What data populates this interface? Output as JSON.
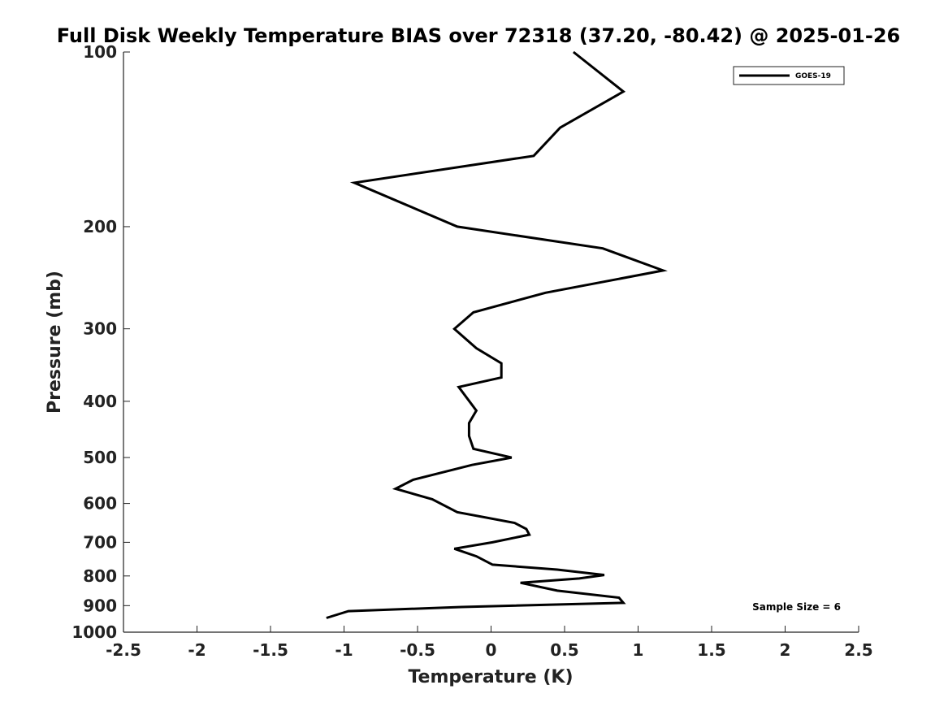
{
  "chart_data": {
    "type": "line",
    "title": "Full Disk Weekly Temperature BIAS over 72318 (37.20, -80.42) @ 2025-01-26",
    "xlabel": "Temperature (K)",
    "ylabel": "Pressure (mb)",
    "xlim": [
      -2.5,
      2.5
    ],
    "ylim": [
      100,
      1000
    ],
    "y_scale": "log",
    "y_reversed": true,
    "grid": false,
    "legend_position": "top-right",
    "x_ticks": [
      "-2.5",
      "-2",
      "-1.5",
      "-1",
      "-0.5",
      "0",
      "0.5",
      "1",
      "1.5",
      "2",
      "2.5"
    ],
    "x_tick_values": [
      -2.5,
      -2,
      -1.5,
      -1,
      -0.5,
      0,
      0.5,
      1,
      1.5,
      2,
      2.5
    ],
    "y_ticks": [
      "100",
      "200",
      "300",
      "400",
      "500",
      "600",
      "700",
      "800",
      "900",
      "1000"
    ],
    "y_tick_values": [
      100,
      200,
      300,
      400,
      500,
      600,
      700,
      800,
      900,
      1000
    ],
    "series": [
      {
        "name": "GOES-19",
        "color": "#000000",
        "points": [
          {
            "x": 0.56,
            "y": 100
          },
          {
            "x": 0.9,
            "y": 117
          },
          {
            "x": 0.47,
            "y": 135
          },
          {
            "x": 0.29,
            "y": 151
          },
          {
            "x": -0.93,
            "y": 168
          },
          {
            "x": -0.23,
            "y": 200
          },
          {
            "x": 0.76,
            "y": 218
          },
          {
            "x": 1.17,
            "y": 238
          },
          {
            "x": 0.37,
            "y": 260
          },
          {
            "x": -0.12,
            "y": 281
          },
          {
            "x": -0.25,
            "y": 300
          },
          {
            "x": -0.1,
            "y": 324
          },
          {
            "x": 0.07,
            "y": 344
          },
          {
            "x": 0.07,
            "y": 364
          },
          {
            "x": -0.22,
            "y": 378
          },
          {
            "x": -0.1,
            "y": 415
          },
          {
            "x": -0.15,
            "y": 436
          },
          {
            "x": -0.15,
            "y": 459
          },
          {
            "x": -0.12,
            "y": 483
          },
          {
            "x": 0.14,
            "y": 500
          },
          {
            "x": -0.13,
            "y": 515
          },
          {
            "x": -0.53,
            "y": 546
          },
          {
            "x": -0.65,
            "y": 566
          },
          {
            "x": -0.4,
            "y": 590
          },
          {
            "x": -0.23,
            "y": 621
          },
          {
            "x": 0.16,
            "y": 648
          },
          {
            "x": 0.24,
            "y": 664
          },
          {
            "x": 0.26,
            "y": 679
          },
          {
            "x": 0.01,
            "y": 700
          },
          {
            "x": -0.25,
            "y": 718
          },
          {
            "x": -0.1,
            "y": 740
          },
          {
            "x": 0.01,
            "y": 765
          },
          {
            "x": 0.45,
            "y": 780
          },
          {
            "x": 0.77,
            "y": 797
          },
          {
            "x": 0.6,
            "y": 808
          },
          {
            "x": 0.2,
            "y": 822
          },
          {
            "x": 0.45,
            "y": 848
          },
          {
            "x": 0.87,
            "y": 872
          },
          {
            "x": 0.9,
            "y": 890
          },
          {
            "x": -0.2,
            "y": 905
          },
          {
            "x": -0.97,
            "y": 920
          },
          {
            "x": -1.12,
            "y": 945
          }
        ]
      }
    ],
    "annotation": "Sample Size = 6"
  }
}
